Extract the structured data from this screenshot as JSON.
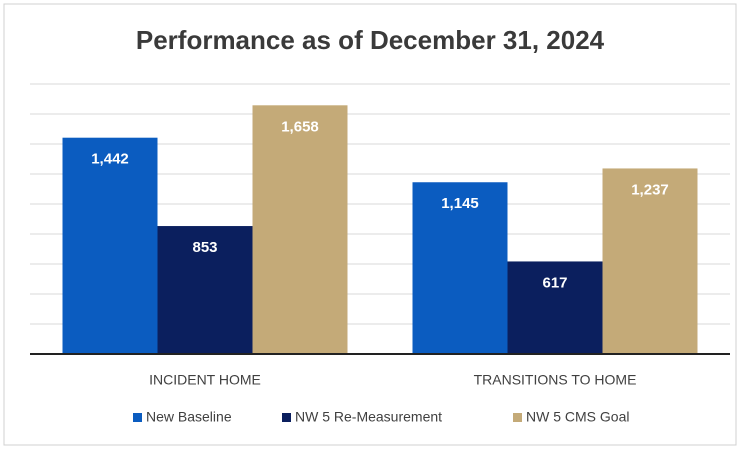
{
  "chart_data": {
    "type": "bar",
    "title": "Performance as of December 31, 2024",
    "categories": [
      "INCIDENT HOME",
      "TRANSITIONS TO HOME"
    ],
    "series": [
      {
        "name": "New Baseline",
        "color": "#0b5cc0",
        "values": [
          1442,
          1145
        ],
        "value_labels": [
          "1,442",
          "1,145"
        ]
      },
      {
        "name": "NW 5 Re-Measurement",
        "color": "#0b1f5e",
        "values": [
          853,
          617
        ]
      },
      {
        "name": "NW 5 CMS Goal",
        "color": "#c4aa78",
        "values": [
          1658,
          1237
        ],
        "value_labels": [
          "1,658",
          "1,237"
        ]
      }
    ],
    "ylim": [
      0,
      1800
    ],
    "yticks": [
      0,
      200,
      400,
      600,
      800,
      1000,
      1200,
      1400,
      1600,
      1800
    ],
    "grid": true,
    "legend": "bottom"
  }
}
